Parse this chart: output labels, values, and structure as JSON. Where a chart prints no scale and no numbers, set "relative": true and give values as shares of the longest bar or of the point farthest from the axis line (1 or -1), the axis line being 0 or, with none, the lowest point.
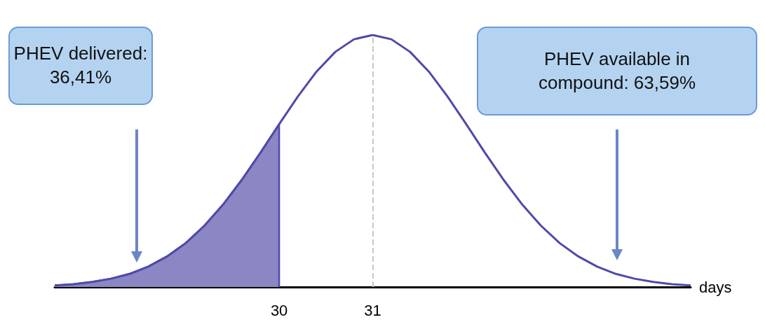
{
  "chart_data": {
    "type": "line",
    "relative": true,
    "xlabel": "days",
    "xlim": [
      27.6,
      34.4
    ],
    "xticks": [
      30,
      31
    ],
    "grid": false,
    "marker": "none",
    "annotations": [
      "PHEV delivered: 36,41%",
      "PHEV available in compound: 63,59%"
    ],
    "ref_lines": [
      {
        "axis": "x",
        "value": 31,
        "color": "#c8c8c8",
        "line_style": "dashed"
      }
    ],
    "series": [
      {
        "color": "#4f4aa8",
        "x": [
          27.6,
          27.8,
          28.0,
          28.2,
          28.4,
          28.6,
          28.8,
          29.0,
          29.2,
          29.4,
          29.6,
          29.8,
          30.0,
          30.2,
          30.4,
          30.6,
          30.8,
          31.0,
          31.2,
          31.4,
          31.6,
          31.8,
          32.0,
          32.2,
          32.4,
          32.6,
          32.8,
          33.0,
          33.2,
          33.4,
          33.6,
          33.8,
          34.0,
          34.2,
          34.4
        ],
        "values": [
          0.006,
          0.011,
          0.02,
          0.033,
          0.052,
          0.081,
          0.121,
          0.174,
          0.243,
          0.327,
          0.425,
          0.533,
          0.646,
          0.756,
          0.855,
          0.933,
          0.983,
          1,
          0.983,
          0.933,
          0.855,
          0.756,
          0.646,
          0.533,
          0.425,
          0.327,
          0.243,
          0.174,
          0.121,
          0.081,
          0.052,
          0.033,
          0.02,
          0.011,
          0.006
        ]
      },
      {
        "type": "area",
        "color": "#8b86c4",
        "x": [
          27.6,
          27.8,
          28.0,
          28.2,
          28.4,
          28.6,
          28.8,
          29.0,
          29.2,
          29.4,
          29.6,
          29.8,
          30.0,
          30.0
        ],
        "values": [
          0.006,
          0.011,
          0.02,
          0.033,
          0.052,
          0.081,
          0.121,
          0.174,
          0.243,
          0.327,
          0.425,
          0.533,
          0.646,
          0
        ]
      }
    ]
  }
}
